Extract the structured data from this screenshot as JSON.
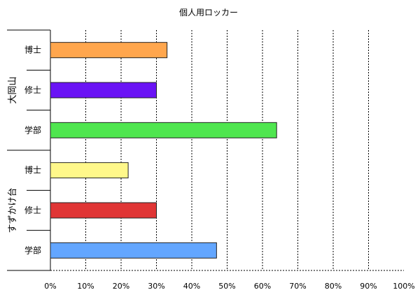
{
  "chart_data": {
    "type": "bar",
    "orientation": "horizontal",
    "title": "個人用ロッカー",
    "xlabel": "",
    "ylabel": "",
    "xlim": [
      0,
      100
    ],
    "x_ticks": [
      "0%",
      "10%",
      "20%",
      "30%",
      "40%",
      "50%",
      "60%",
      "70%",
      "80%",
      "90%",
      "100%"
    ],
    "grid": "vertical dotted",
    "legend": "none",
    "groups": [
      {
        "name": "大岡山",
        "categories": [
          {
            "label": "博士",
            "value": 33,
            "color": "#ffa64d"
          },
          {
            "label": "修士",
            "value": 30,
            "color": "#6a13f5"
          },
          {
            "label": "学部",
            "value": 64,
            "color": "#4fe64f"
          }
        ]
      },
      {
        "name": "すずかけ台",
        "categories": [
          {
            "label": "博士",
            "value": 22,
            "color": "#fff88a"
          },
          {
            "label": "修士",
            "value": 30,
            "color": "#e03535"
          },
          {
            "label": "学部",
            "value": 47,
            "color": "#63a6ff"
          }
        ]
      }
    ]
  }
}
